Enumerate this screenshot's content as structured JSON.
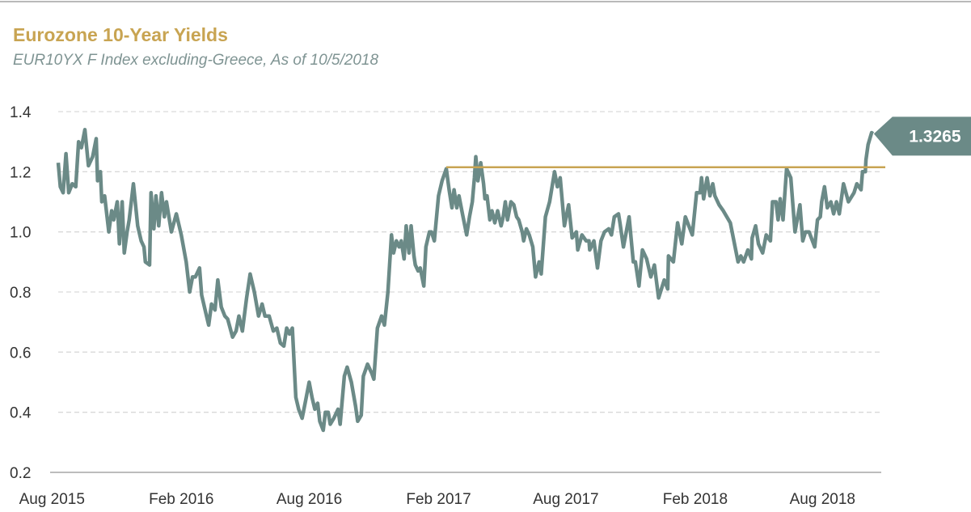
{
  "title": "Eurozone 10-Year Yields",
  "subtitle": "EUR10YX F Index excluding-Greece, As of 10/5/2018",
  "colors": {
    "series": "#6B8A87",
    "resistance": "#C8A452",
    "title": "#C8A452",
    "subtitle": "#7F9493",
    "grid": "#d9d9d9"
  },
  "chart_data": {
    "type": "line",
    "title": "Eurozone 10-Year Yields",
    "subtitle": "EUR10YX F Index excluding-Greece, As of 10/5/2018",
    "xlabel": "",
    "ylabel": "",
    "ylim": [
      0.2,
      1.4
    ],
    "xlim": [
      "2015-08-01",
      "2018-10-24"
    ],
    "y_ticks": [
      "0.2",
      "0.4",
      "0.6",
      "0.8",
      "1.0",
      "1.2",
      "1.4"
    ],
    "x_ticks": [
      {
        "label": "Aug 2015",
        "date": "2015-08-01"
      },
      {
        "label": "Feb 2016",
        "date": "2016-02-01"
      },
      {
        "label": "Aug 2016",
        "date": "2016-08-01"
      },
      {
        "label": "Feb 2017",
        "date": "2017-02-01"
      },
      {
        "label": "Aug 2017",
        "date": "2017-08-01"
      },
      {
        "label": "Feb 2018",
        "date": "2018-02-01"
      },
      {
        "label": "Aug 2018",
        "date": "2018-08-01"
      }
    ],
    "grid": "horizontal dashed",
    "legend": "none",
    "last_value_label": "1.3265",
    "resistance_line": {
      "value": 1.215,
      "from": "2017-02-05",
      "to": "2018-10-24"
    },
    "series": [
      {
        "points": [
          [
            "2015-08-03",
            1.23
          ],
          [
            "2015-08-06",
            1.15
          ],
          [
            "2015-08-10",
            1.13
          ],
          [
            "2015-08-14",
            1.26
          ],
          [
            "2015-08-18",
            1.13
          ],
          [
            "2015-08-23",
            1.16
          ],
          [
            "2015-08-28",
            1.15
          ],
          [
            "2015-09-01",
            1.3
          ],
          [
            "2015-09-05",
            1.28
          ],
          [
            "2015-09-10",
            1.34
          ],
          [
            "2015-09-15",
            1.22
          ],
          [
            "2015-09-21",
            1.25
          ],
          [
            "2015-09-26",
            1.31
          ],
          [
            "2015-09-28",
            1.17
          ],
          [
            "2015-10-02",
            1.2
          ],
          [
            "2015-10-04",
            1.1
          ],
          [
            "2015-10-08",
            1.12
          ],
          [
            "2015-10-14",
            1.0
          ],
          [
            "2015-10-18",
            1.07
          ],
          [
            "2015-10-21",
            1.04
          ],
          [
            "2015-10-26",
            1.1
          ],
          [
            "2015-10-29",
            0.96
          ],
          [
            "2015-11-02",
            1.1
          ],
          [
            "2015-11-05",
            0.93
          ],
          [
            "2015-11-09",
            1.0
          ],
          [
            "2015-11-12",
            1.04
          ],
          [
            "2015-11-18",
            1.16
          ],
          [
            "2015-11-24",
            1.02
          ],
          [
            "2015-11-29",
            0.97
          ],
          [
            "2015-12-03",
            0.95
          ],
          [
            "2015-12-05",
            0.9
          ],
          [
            "2015-12-11",
            0.89
          ],
          [
            "2015-12-13",
            1.13
          ],
          [
            "2015-12-17",
            1.01
          ],
          [
            "2015-12-20",
            1.12
          ],
          [
            "2015-12-24",
            1.02
          ],
          [
            "2015-12-28",
            1.13
          ],
          [
            "2016-01-01",
            1.05
          ],
          [
            "2016-01-04",
            1.1
          ],
          [
            "2016-01-11",
            1.0
          ],
          [
            "2016-01-18",
            1.06
          ],
          [
            "2016-01-25",
            0.99
          ],
          [
            "2016-02-01",
            0.9
          ],
          [
            "2016-02-06",
            0.8
          ],
          [
            "2016-02-10",
            0.85
          ],
          [
            "2016-02-14",
            0.85
          ],
          [
            "2016-02-20",
            0.88
          ],
          [
            "2016-02-23",
            0.79
          ],
          [
            "2016-02-28",
            0.74
          ],
          [
            "2016-03-04",
            0.69
          ],
          [
            "2016-03-08",
            0.76
          ],
          [
            "2016-03-13",
            0.74
          ],
          [
            "2016-03-17",
            0.84
          ],
          [
            "2016-03-22",
            0.75
          ],
          [
            "2016-03-27",
            0.72
          ],
          [
            "2016-03-31",
            0.71
          ],
          [
            "2016-04-07",
            0.65
          ],
          [
            "2016-04-12",
            0.67
          ],
          [
            "2016-04-16",
            0.72
          ],
          [
            "2016-04-21",
            0.67
          ],
          [
            "2016-04-27",
            0.78
          ],
          [
            "2016-05-02",
            0.86
          ],
          [
            "2016-05-08",
            0.8
          ],
          [
            "2016-05-14",
            0.72
          ],
          [
            "2016-05-19",
            0.76
          ],
          [
            "2016-05-23",
            0.72
          ],
          [
            "2016-05-29",
            0.72
          ],
          [
            "2016-06-04",
            0.67
          ],
          [
            "2016-06-09",
            0.68
          ],
          [
            "2016-06-14",
            0.63
          ],
          [
            "2016-06-19",
            0.62
          ],
          [
            "2016-06-23",
            0.68
          ],
          [
            "2016-06-27",
            0.66
          ],
          [
            "2016-07-01",
            0.68
          ],
          [
            "2016-07-06",
            0.45
          ],
          [
            "2016-07-10",
            0.41
          ],
          [
            "2016-07-15",
            0.38
          ],
          [
            "2016-07-20",
            0.44
          ],
          [
            "2016-07-25",
            0.5
          ],
          [
            "2016-07-29",
            0.45
          ],
          [
            "2016-08-02",
            0.41
          ],
          [
            "2016-08-06",
            0.43
          ],
          [
            "2016-08-09",
            0.37
          ],
          [
            "2016-08-14",
            0.34
          ],
          [
            "2016-08-17",
            0.4
          ],
          [
            "2016-08-21",
            0.4
          ],
          [
            "2016-08-24",
            0.36
          ],
          [
            "2016-08-29",
            0.38
          ],
          [
            "2016-09-04",
            0.41
          ],
          [
            "2016-09-07",
            0.36
          ],
          [
            "2016-09-13",
            0.52
          ],
          [
            "2016-09-17",
            0.55
          ],
          [
            "2016-09-23",
            0.5
          ],
          [
            "2016-09-29",
            0.42
          ],
          [
            "2016-10-02",
            0.37
          ],
          [
            "2016-10-07",
            0.39
          ],
          [
            "2016-10-10",
            0.52
          ],
          [
            "2016-10-16",
            0.56
          ],
          [
            "2016-10-22",
            0.53
          ],
          [
            "2016-10-25",
            0.51
          ],
          [
            "2016-10-30",
            0.68
          ],
          [
            "2016-11-05",
            0.72
          ],
          [
            "2016-11-09",
            0.69
          ],
          [
            "2016-11-14",
            0.8
          ],
          [
            "2016-11-19",
            0.99
          ],
          [
            "2016-11-22",
            0.93
          ],
          [
            "2016-11-26",
            0.97
          ],
          [
            "2016-11-30",
            0.95
          ],
          [
            "2016-12-03",
            0.97
          ],
          [
            "2016-12-07",
            0.91
          ],
          [
            "2016-12-10",
            1.02
          ],
          [
            "2016-12-14",
            0.93
          ],
          [
            "2016-12-17",
            1.02
          ],
          [
            "2016-12-21",
            0.92
          ],
          [
            "2016-12-23",
            0.89
          ],
          [
            "2016-12-27",
            0.87
          ],
          [
            "2016-12-30",
            0.88
          ],
          [
            "2017-01-04",
            0.82
          ],
          [
            "2017-01-07",
            0.95
          ],
          [
            "2017-01-12",
            1.0
          ],
          [
            "2017-01-15",
            1.0
          ],
          [
            "2017-01-19",
            0.97
          ],
          [
            "2017-01-25",
            1.12
          ],
          [
            "2017-01-30",
            1.17
          ],
          [
            "2017-02-05",
            1.21
          ],
          [
            "2017-02-09",
            1.14
          ],
          [
            "2017-02-13",
            1.08
          ],
          [
            "2017-02-16",
            1.14
          ],
          [
            "2017-02-20",
            1.08
          ],
          [
            "2017-02-23",
            1.12
          ],
          [
            "2017-02-28",
            1.06
          ],
          [
            "2017-03-06",
            0.99
          ],
          [
            "2017-03-10",
            1.05
          ],
          [
            "2017-03-14",
            1.1
          ],
          [
            "2017-03-17",
            1.18
          ],
          [
            "2017-03-19",
            1.25
          ],
          [
            "2017-03-22",
            1.17
          ],
          [
            "2017-03-26",
            1.23
          ],
          [
            "2017-03-30",
            1.16
          ],
          [
            "2017-04-01",
            1.11
          ],
          [
            "2017-04-04",
            1.12
          ],
          [
            "2017-04-08",
            1.04
          ],
          [
            "2017-04-11",
            1.07
          ],
          [
            "2017-04-15",
            1.03
          ],
          [
            "2017-04-19",
            1.07
          ],
          [
            "2017-04-24",
            1.02
          ],
          [
            "2017-04-27",
            1.05
          ],
          [
            "2017-04-30",
            1.1
          ],
          [
            "2017-05-03",
            1.04
          ],
          [
            "2017-05-08",
            1.1
          ],
          [
            "2017-05-12",
            1.09
          ],
          [
            "2017-05-16",
            1.05
          ],
          [
            "2017-05-19",
            1.04
          ],
          [
            "2017-05-24",
            1.0
          ],
          [
            "2017-05-26",
            0.97
          ],
          [
            "2017-05-30",
            1.01
          ],
          [
            "2017-06-03",
            0.99
          ],
          [
            "2017-06-08",
            0.95
          ],
          [
            "2017-06-12",
            0.85
          ],
          [
            "2017-06-17",
            0.9
          ],
          [
            "2017-06-20",
            0.86
          ],
          [
            "2017-06-26",
            1.05
          ],
          [
            "2017-07-02",
            1.1
          ],
          [
            "2017-07-09",
            1.2
          ],
          [
            "2017-07-13",
            1.15
          ],
          [
            "2017-07-17",
            1.18
          ],
          [
            "2017-07-23",
            1.02
          ],
          [
            "2017-07-29",
            1.09
          ],
          [
            "2017-08-03",
            0.98
          ],
          [
            "2017-08-09",
            1.0
          ],
          [
            "2017-08-11",
            0.94
          ],
          [
            "2017-08-17",
            0.99
          ],
          [
            "2017-08-23",
            0.97
          ],
          [
            "2017-08-27",
            0.97
          ],
          [
            "2017-08-28",
            0.94
          ],
          [
            "2017-09-03",
            0.97
          ],
          [
            "2017-09-08",
            0.88
          ],
          [
            "2017-09-13",
            0.97
          ],
          [
            "2017-09-18",
            1.0
          ],
          [
            "2017-09-24",
            1.01
          ],
          [
            "2017-09-28",
            0.99
          ],
          [
            "2017-10-02",
            1.05
          ],
          [
            "2017-10-08",
            1.06
          ],
          [
            "2017-10-10",
            1.03
          ],
          [
            "2017-10-15",
            0.95
          ],
          [
            "2017-10-23",
            1.05
          ],
          [
            "2017-10-29",
            0.9
          ],
          [
            "2017-11-01",
            0.9
          ],
          [
            "2017-11-06",
            0.82
          ],
          [
            "2017-11-11",
            0.94
          ],
          [
            "2017-11-17",
            0.91
          ],
          [
            "2017-11-23",
            0.85
          ],
          [
            "2017-11-28",
            0.89
          ],
          [
            "2017-12-04",
            0.78
          ],
          [
            "2017-12-12",
            0.84
          ],
          [
            "2017-12-17",
            0.81
          ],
          [
            "2017-12-18",
            0.92
          ],
          [
            "2017-12-25",
            0.9
          ],
          [
            "2017-12-31",
            1.03
          ],
          [
            "2018-01-06",
            0.96
          ],
          [
            "2018-01-11",
            1.05
          ],
          [
            "2018-01-21",
            0.99
          ],
          [
            "2018-01-27",
            1.13
          ],
          [
            "2018-02-01",
            1.13
          ],
          [
            "2018-02-03",
            1.18
          ],
          [
            "2018-02-06",
            1.11
          ],
          [
            "2018-02-11",
            1.18
          ],
          [
            "2018-02-15",
            1.12
          ],
          [
            "2018-02-19",
            1.16
          ],
          [
            "2018-02-22",
            1.12
          ],
          [
            "2018-02-28",
            1.09
          ],
          [
            "2018-03-06",
            1.07
          ],
          [
            "2018-03-16",
            1.03
          ],
          [
            "2018-03-27",
            0.9
          ],
          [
            "2018-03-31",
            0.92
          ],
          [
            "2018-04-04",
            0.9
          ],
          [
            "2018-04-10",
            0.94
          ],
          [
            "2018-04-15",
            0.91
          ],
          [
            "2018-04-16",
            0.98
          ],
          [
            "2018-04-21",
            1.02
          ],
          [
            "2018-04-25",
            0.96
          ],
          [
            "2018-05-01",
            0.93
          ],
          [
            "2018-05-06",
            0.99
          ],
          [
            "2018-05-12",
            0.97
          ],
          [
            "2018-05-15",
            1.1
          ],
          [
            "2018-05-20",
            1.1
          ],
          [
            "2018-05-23",
            1.04
          ],
          [
            "2018-05-26",
            1.11
          ],
          [
            "2018-05-30",
            1.04
          ],
          [
            "2018-06-04",
            1.21
          ],
          [
            "2018-06-10",
            1.18
          ],
          [
            "2018-06-16",
            1.0
          ],
          [
            "2018-06-23",
            1.09
          ],
          [
            "2018-06-27",
            0.97
          ],
          [
            "2018-07-01",
            1.0
          ],
          [
            "2018-07-06",
            1.0
          ],
          [
            "2018-07-14",
            0.95
          ],
          [
            "2018-07-18",
            1.04
          ],
          [
            "2018-07-22",
            1.05
          ],
          [
            "2018-07-24",
            1.1
          ],
          [
            "2018-07-28",
            1.15
          ],
          [
            "2018-08-01",
            1.08
          ],
          [
            "2018-08-06",
            1.1
          ],
          [
            "2018-08-10",
            1.06
          ],
          [
            "2018-08-14",
            1.1
          ],
          [
            "2018-08-18",
            1.06
          ],
          [
            "2018-08-24",
            1.16
          ],
          [
            "2018-08-31",
            1.1
          ],
          [
            "2018-09-08",
            1.13
          ],
          [
            "2018-09-12",
            1.16
          ],
          [
            "2018-09-18",
            1.14
          ],
          [
            "2018-09-20",
            1.2
          ],
          [
            "2018-09-24",
            1.2
          ],
          [
            "2018-09-25",
            1.24
          ],
          [
            "2018-09-28",
            1.29
          ],
          [
            "2018-10-03",
            1.33
          ],
          [
            "2018-10-05",
            1.3265
          ]
        ]
      }
    ]
  }
}
